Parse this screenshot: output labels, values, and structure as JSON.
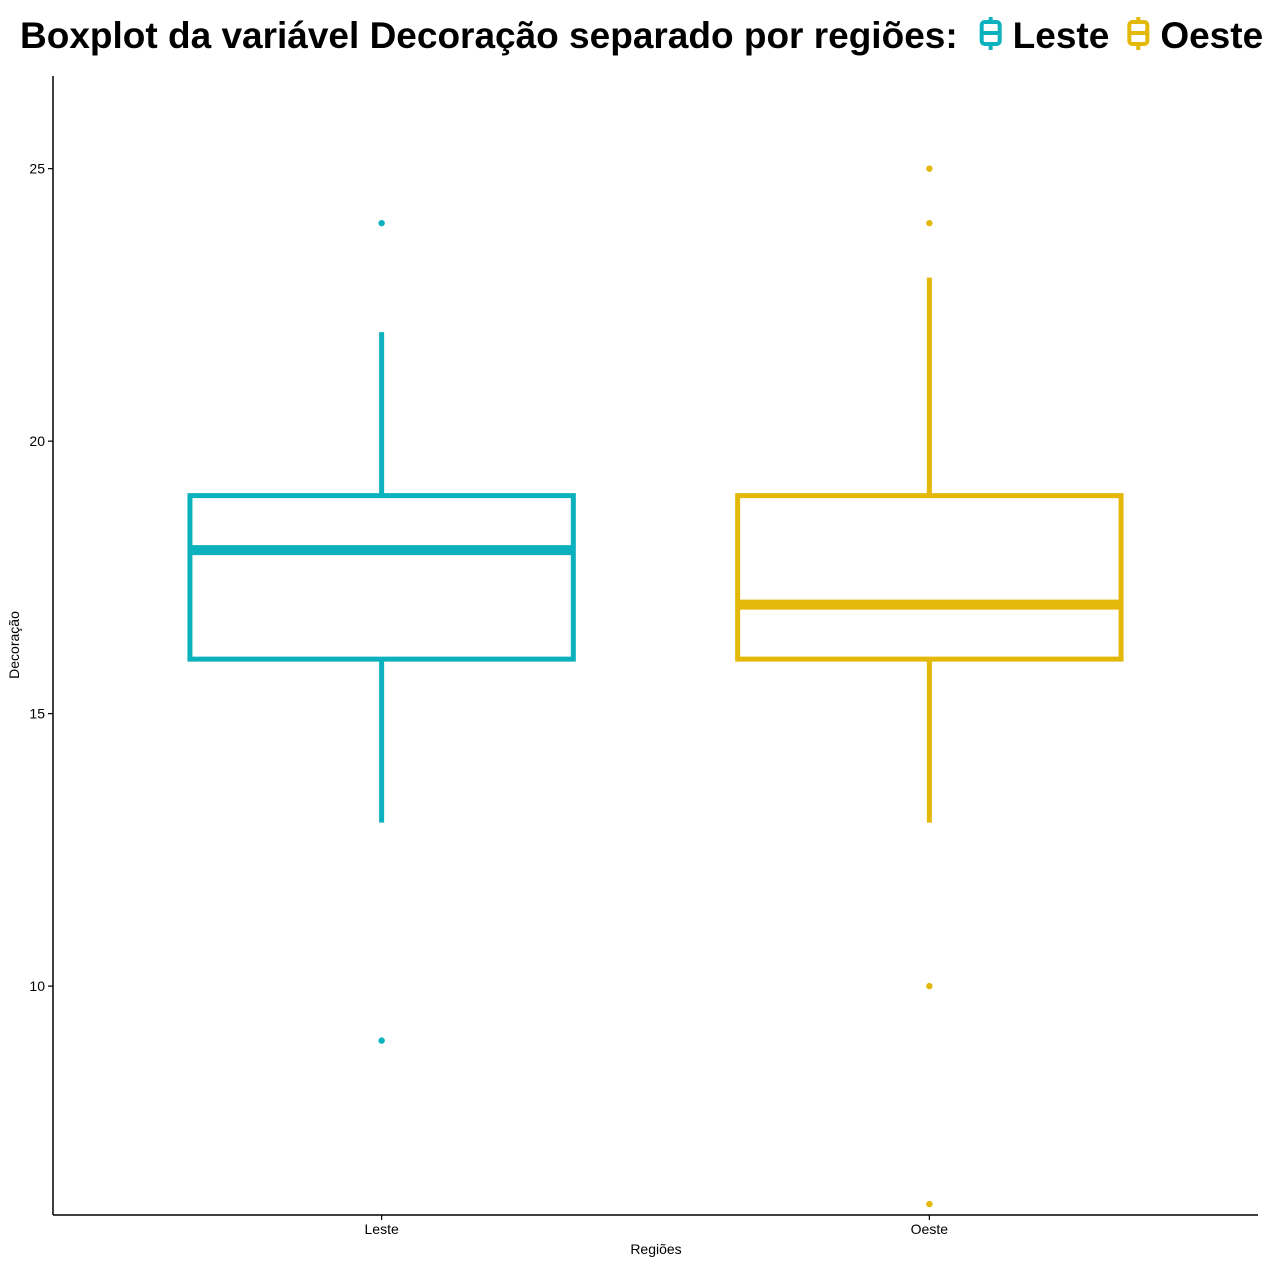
{
  "chart_data": {
    "type": "boxplot",
    "title": "Boxplot da variável Decoração separado por regiões:",
    "xlabel": "Regiões",
    "ylabel": "Decoração",
    "categories": [
      "Leste",
      "Oeste"
    ],
    "ylim": [
      5.8,
      26.7
    ],
    "yticks": [
      10,
      15,
      20,
      25
    ],
    "ytick_labels": [
      "10",
      "15",
      "20",
      "25"
    ],
    "grid": false,
    "legend": {
      "position": "top",
      "entries": [
        "Leste",
        "Oeste"
      ]
    },
    "series": [
      {
        "name": "Leste",
        "color": "#0CB1BE",
        "lower_whisker": 13,
        "q1": 16,
        "median": 18,
        "q3": 19,
        "upper_whisker": 22,
        "outliers": [
          24,
          9
        ]
      },
      {
        "name": "Oeste",
        "color": "#E3B808",
        "lower_whisker": 13,
        "q1": 16,
        "median": 17,
        "q3": 19,
        "upper_whisker": 23,
        "outliers": [
          25,
          24,
          10,
          6
        ]
      }
    ]
  }
}
